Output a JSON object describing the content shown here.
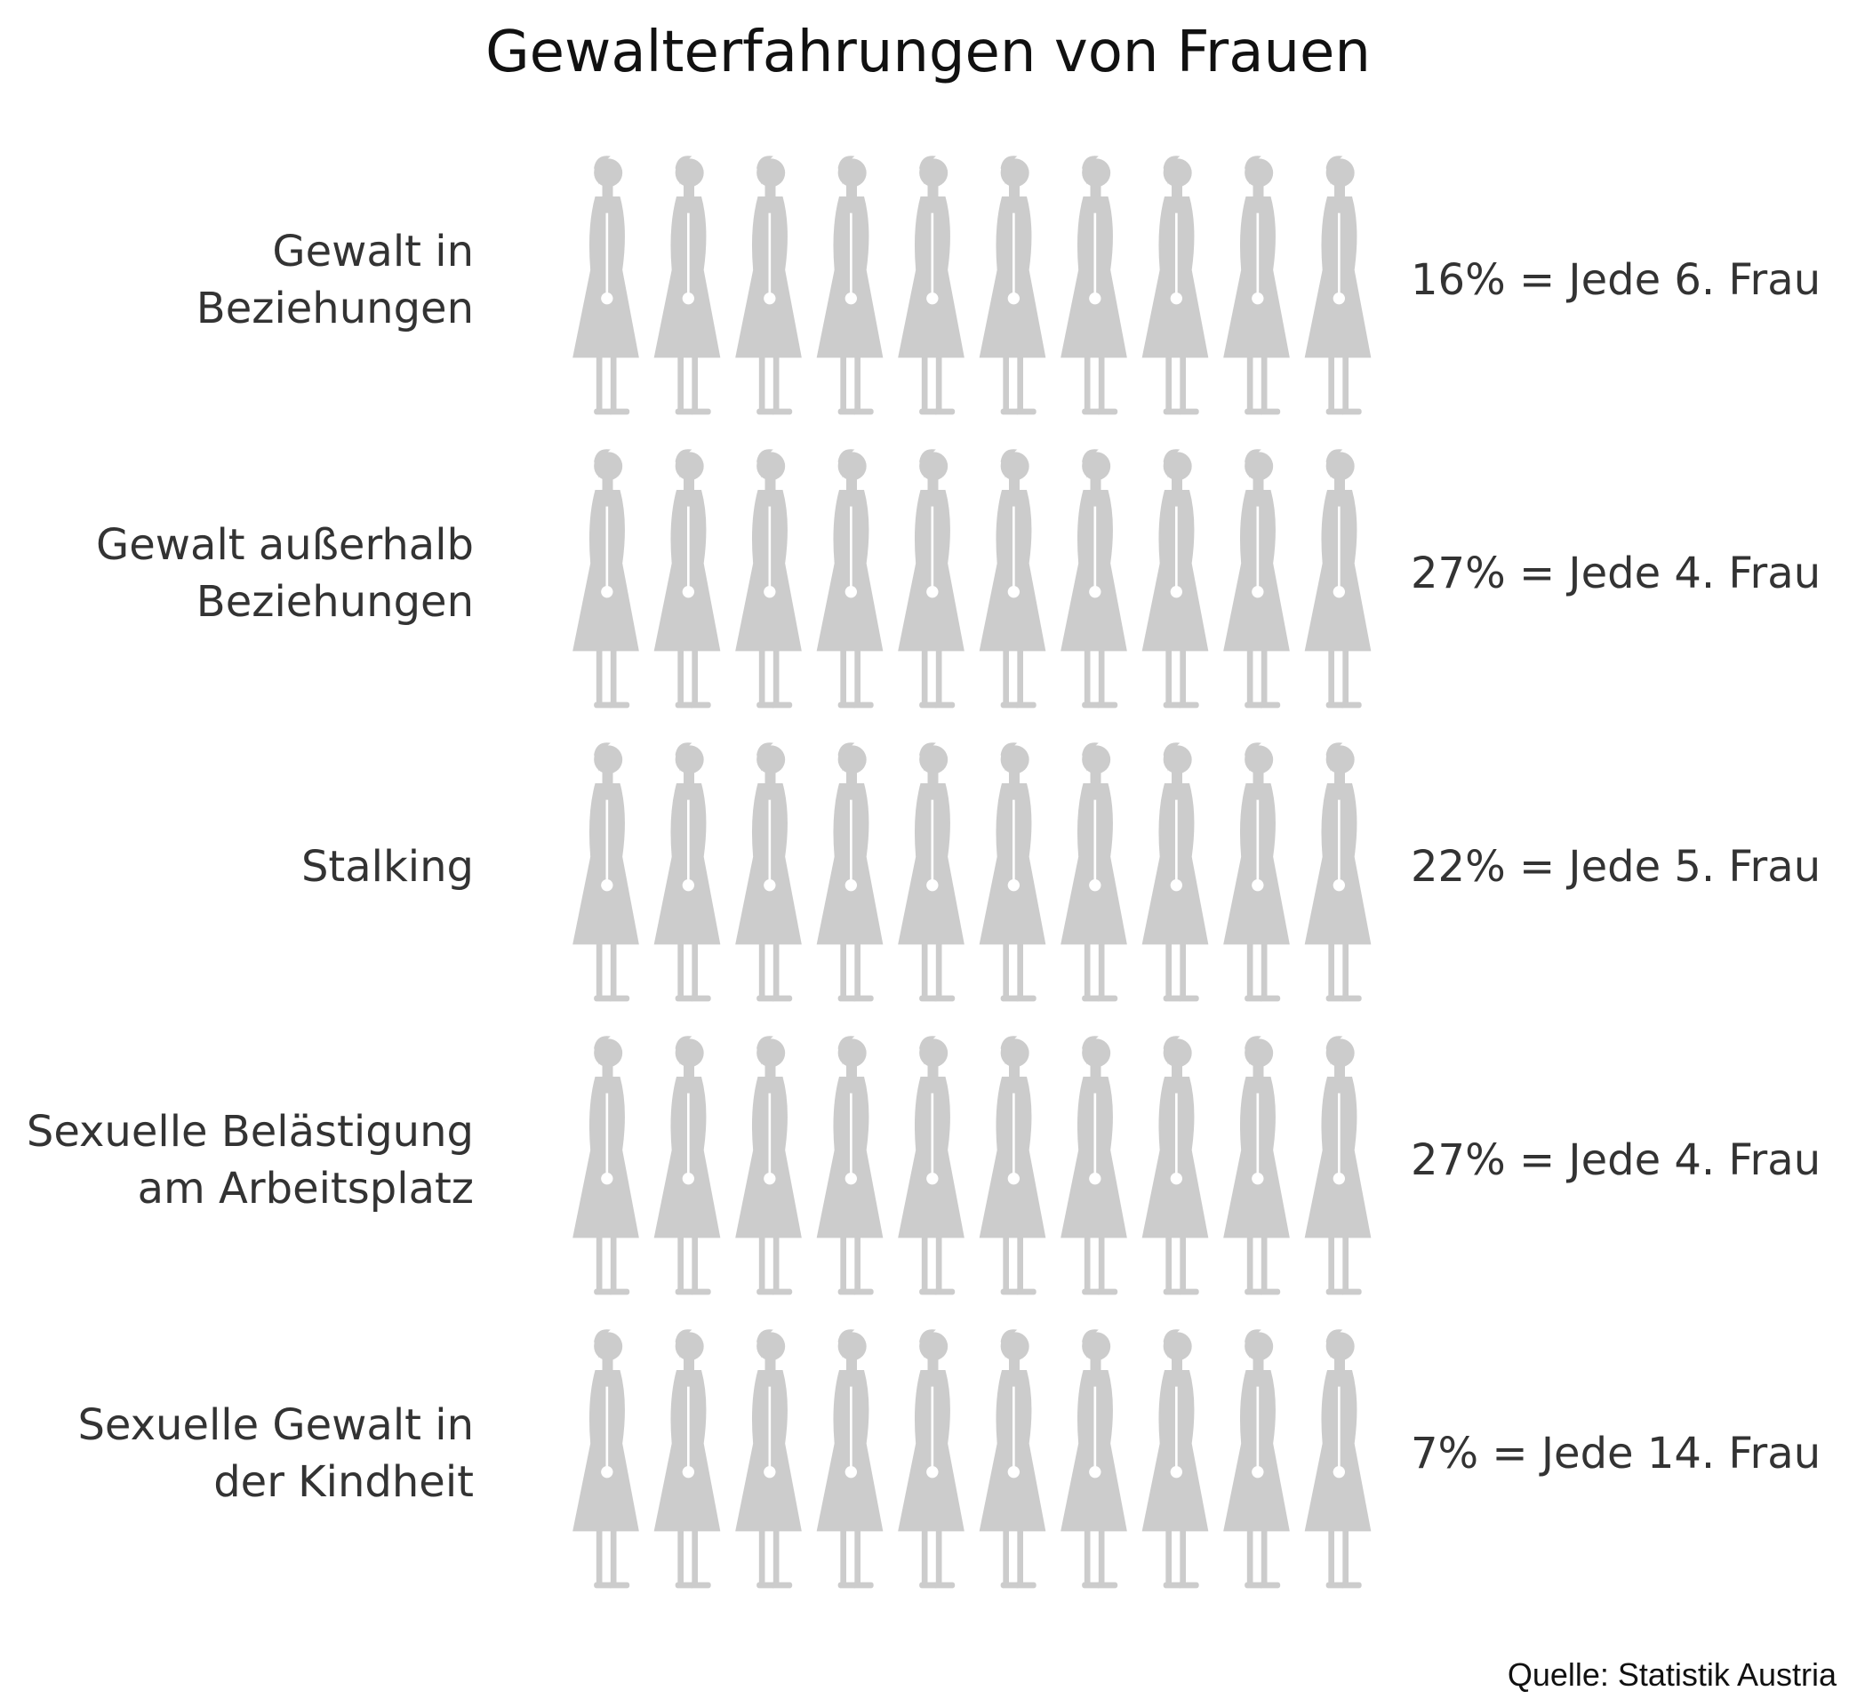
{
  "chart_data": {
    "type": "pictogram",
    "title": "Gewalterfahrungen von Frauen",
    "categories": [
      [
        "Gewalt in",
        "Beziehungen"
      ],
      [
        "Gewalt außerhalb",
        "Beziehungen"
      ],
      [
        "Stalking"
      ],
      [
        "Sexuelle Belästigung",
        "am Arbeitsplatz"
      ],
      [
        "Sexuelle Gewalt in",
        "der Kindheit"
      ]
    ],
    "values": [
      16,
      27,
      22,
      27,
      7
    ],
    "value_labels": [
      "16% = Jede 6. Frau",
      "27% = Jede 4. Frau",
      "22% = Jede 5. Frau",
      "27% = Jede 4. Frau",
      "7% = Jede 14. Frau"
    ],
    "xlim": [
      0,
      100
    ],
    "color": "#a8433a",
    "empty_color": "#cccccc",
    "source": "Quelle: Statistik Austria"
  }
}
